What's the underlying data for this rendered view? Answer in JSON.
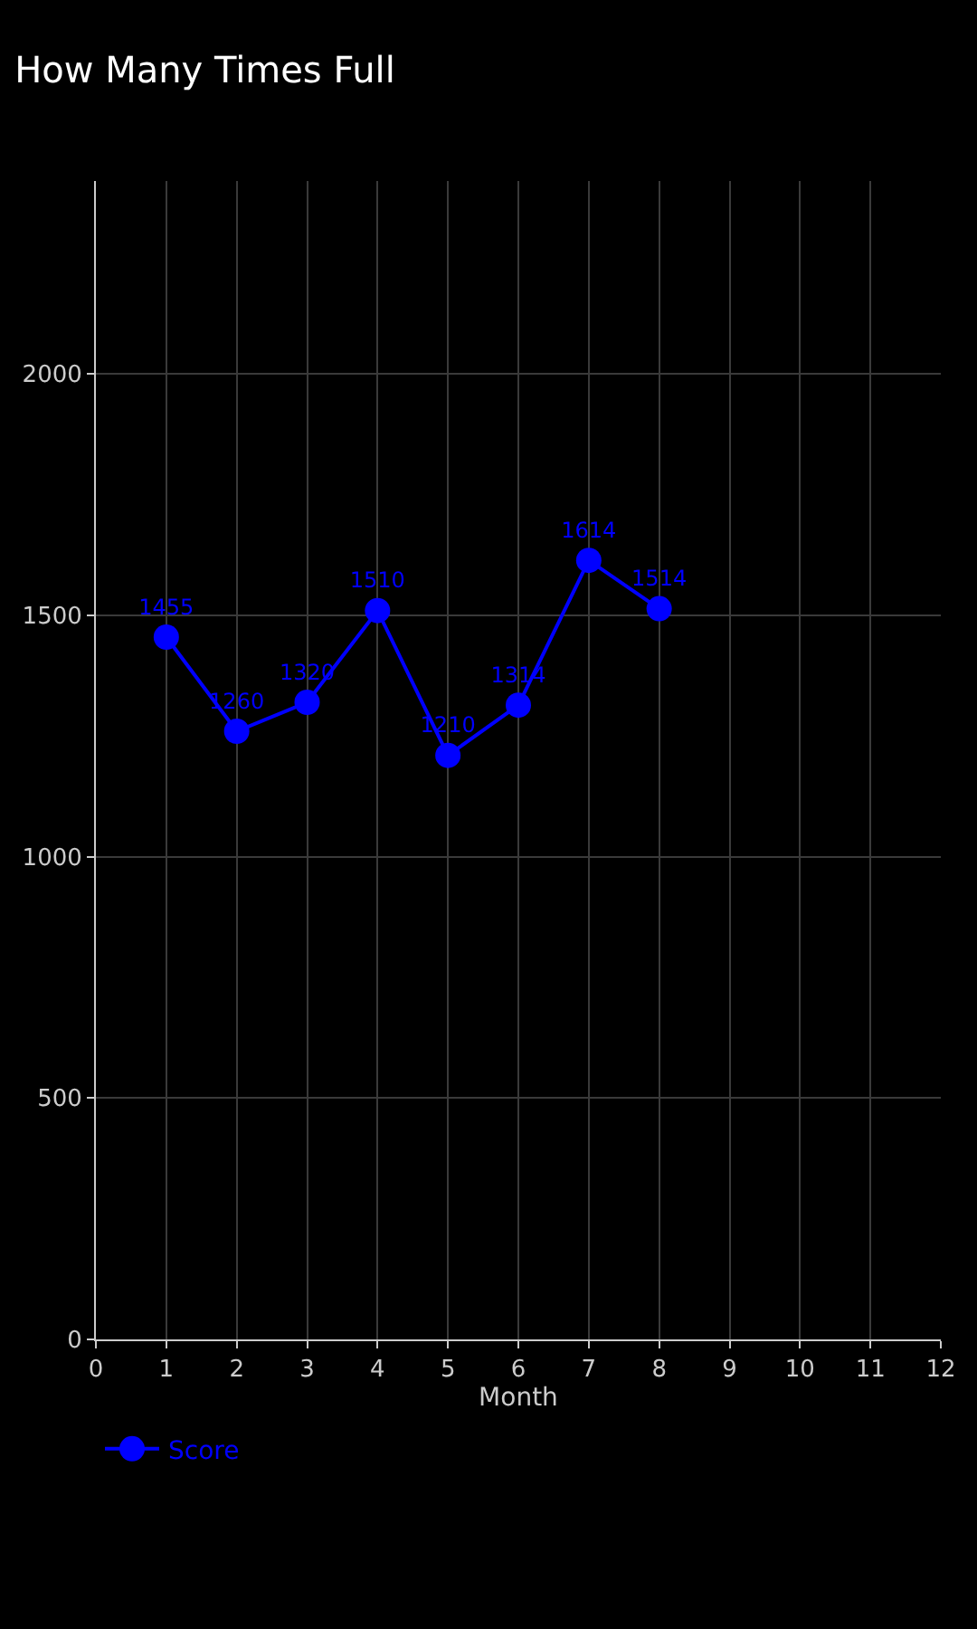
{
  "chart_data": {
    "type": "line",
    "title": "How Many Times Full",
    "xlabel": "Month",
    "x": [
      1,
      2,
      3,
      4,
      5,
      6,
      7,
      8
    ],
    "series": [
      {
        "name": "Score",
        "color": "#0000ff",
        "values": [
          1455,
          1260,
          1320,
          1510,
          1210,
          1314,
          1614,
          1514
        ]
      }
    ],
    "xlim": [
      0,
      12
    ],
    "xticks": [
      0,
      1,
      2,
      3,
      4,
      5,
      6,
      7,
      8,
      9,
      10,
      11,
      12
    ],
    "ylim": [
      0,
      2400
    ],
    "yticks": [
      0,
      500,
      1000,
      1500,
      2000
    ],
    "grid": true,
    "legend": "bottom left",
    "marker": "circle",
    "line_style": "solid",
    "data_labels": true
  }
}
